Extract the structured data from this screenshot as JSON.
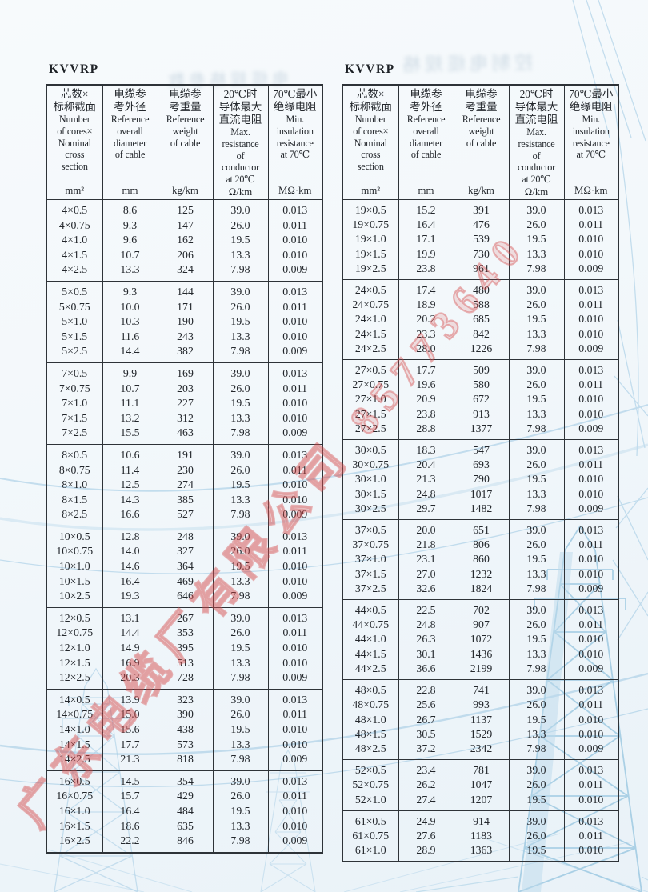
{
  "watermark": {
    "company": "广东电缆厂有限公司",
    "phone": "85773640",
    "color": "#d54848"
  },
  "decor": {
    "showthrough_left": "电缆规格参数",
    "showthrough_right": "控制电缆规格",
    "line_art_color": "#a4cce5"
  },
  "columns": [
    {
      "zh": [
        "芯数×",
        "标称截面"
      ],
      "en": [
        "Number",
        "of cores×",
        "Nominal",
        "cross",
        "section"
      ],
      "unit": "mm²"
    },
    {
      "zh": [
        "电缆参",
        "考外径"
      ],
      "en": [
        "Reference",
        "overall",
        "diameter",
        "of cable"
      ],
      "unit": "mm"
    },
    {
      "zh": [
        "电缆参",
        "考重量"
      ],
      "en": [
        "Reference",
        "weight",
        "of cable"
      ],
      "unit": "kg/km"
    },
    {
      "zh": [
        "20℃时",
        "导体最大",
        "直流电阻"
      ],
      "en": [
        "Max.",
        "resistance",
        "of",
        "conductor",
        "at 20℃"
      ],
      "unit": "Ω/km"
    },
    {
      "zh": [
        "70℃最小",
        "绝缘电阻"
      ],
      "en": [
        "Min.",
        "insulation",
        "resistance",
        "at 70℃"
      ],
      "unit": "MΩ·km"
    }
  ],
  "left_table": {
    "title": "KVVRP",
    "blocks": [
      [
        [
          "4×0.5",
          "8.6",
          "125",
          "39.0",
          "0.013"
        ],
        [
          "4×0.75",
          "9.3",
          "147",
          "26.0",
          "0.011"
        ],
        [
          "4×1.0",
          "9.6",
          "162",
          "19.5",
          "0.010"
        ],
        [
          "4×1.5",
          "10.7",
          "206",
          "13.3",
          "0.010"
        ],
        [
          "4×2.5",
          "13.3",
          "324",
          "7.98",
          "0.009"
        ]
      ],
      [
        [
          "5×0.5",
          "9.3",
          "144",
          "39.0",
          "0.013"
        ],
        [
          "5×0.75",
          "10.0",
          "171",
          "26.0",
          "0.011"
        ],
        [
          "5×1.0",
          "10.3",
          "190",
          "19.5",
          "0.010"
        ],
        [
          "5×1.5",
          "11.6",
          "243",
          "13.3",
          "0.010"
        ],
        [
          "5×2.5",
          "14.4",
          "382",
          "7.98",
          "0.009"
        ]
      ],
      [
        [
          "7×0.5",
          "9.9",
          "169",
          "39.0",
          "0.013"
        ],
        [
          "7×0.75",
          "10.7",
          "203",
          "26.0",
          "0.011"
        ],
        [
          "7×1.0",
          "11.1",
          "227",
          "19.5",
          "0.010"
        ],
        [
          "7×1.5",
          "13.2",
          "312",
          "13.3",
          "0.010"
        ],
        [
          "7×2.5",
          "15.5",
          "463",
          "7.98",
          "0.009"
        ]
      ],
      [
        [
          "8×0.5",
          "10.6",
          "191",
          "39.0",
          "0.013"
        ],
        [
          "8×0.75",
          "11.4",
          "230",
          "26.0",
          "0.011"
        ],
        [
          "8×1.0",
          "12.5",
          "274",
          "19.5",
          "0.010"
        ],
        [
          "8×1.5",
          "14.3",
          "385",
          "13.3",
          "0.010"
        ],
        [
          "8×2.5",
          "16.6",
          "527",
          "7.98",
          "0.009"
        ]
      ],
      [
        [
          "10×0.5",
          "12.8",
          "248",
          "39.0",
          "0.013"
        ],
        [
          "10×0.75",
          "14.0",
          "327",
          "26.0",
          "0.011"
        ],
        [
          "10×1.0",
          "14.6",
          "364",
          "19.5",
          "0.010"
        ],
        [
          "10×1.5",
          "16.4",
          "469",
          "13.3",
          "0.010"
        ],
        [
          "10×2.5",
          "19.3",
          "646",
          "7.98",
          "0.009"
        ]
      ],
      [
        [
          "12×0.5",
          "13.1",
          "267",
          "39.0",
          "0.013"
        ],
        [
          "12×0.75",
          "14.4",
          "353",
          "26.0",
          "0.011"
        ],
        [
          "12×1.0",
          "14.9",
          "395",
          "19.5",
          "0.010"
        ],
        [
          "12×1.5",
          "16.9",
          "513",
          "13.3",
          "0.010"
        ],
        [
          "12×2.5",
          "20.3",
          "728",
          "7.98",
          "0.009"
        ]
      ],
      [
        [
          "14×0.5",
          "13.9",
          "323",
          "39.0",
          "0.013"
        ],
        [
          "14×0.75",
          "15.0",
          "390",
          "26.0",
          "0.011"
        ],
        [
          "14×1.0",
          "15.6",
          "438",
          "19.5",
          "0.010"
        ],
        [
          "14×1.5",
          "17.7",
          "573",
          "13.3",
          "0.010"
        ],
        [
          "14×2.5",
          "21.3",
          "818",
          "7.98",
          "0.009"
        ]
      ],
      [
        [
          "16×0.5",
          "14.5",
          "354",
          "39.0",
          "0.013"
        ],
        [
          "16×0.75",
          "15.7",
          "429",
          "26.0",
          "0.011"
        ],
        [
          "16×1.0",
          "16.4",
          "484",
          "19.5",
          "0.010"
        ],
        [
          "16×1.5",
          "18.6",
          "635",
          "13.3",
          "0.010"
        ],
        [
          "16×2.5",
          "22.2",
          "846",
          "7.98",
          "0.009"
        ]
      ]
    ]
  },
  "right_table": {
    "title": "KVVRP",
    "blocks": [
      [
        [
          "19×0.5",
          "15.2",
          "391",
          "39.0",
          "0.013"
        ],
        [
          "19×0.75",
          "16.4",
          "476",
          "26.0",
          "0.011"
        ],
        [
          "19×1.0",
          "17.1",
          "539",
          "19.5",
          "0.010"
        ],
        [
          "19×1.5",
          "19.9",
          "730",
          "13.3",
          "0.010"
        ],
        [
          "19×2.5",
          "23.8",
          "961",
          "7.98",
          "0.009"
        ]
      ],
      [
        [
          "24×0.5",
          "17.4",
          "480",
          "39.0",
          "0.013"
        ],
        [
          "24×0.75",
          "18.9",
          "588",
          "26.0",
          "0.011"
        ],
        [
          "24×1.0",
          "20.2",
          "685",
          "19.5",
          "0.010"
        ],
        [
          "24×1.5",
          "23.3",
          "842",
          "13.3",
          "0.010"
        ],
        [
          "24×2.5",
          "28.0",
          "1226",
          "7.98",
          "0.009"
        ]
      ],
      [
        [
          "27×0.5",
          "17.7",
          "509",
          "39.0",
          "0.013"
        ],
        [
          "27×0.75",
          "19.6",
          "580",
          "26.0",
          "0.011"
        ],
        [
          "27×1.0",
          "20.9",
          "672",
          "19.5",
          "0.010"
        ],
        [
          "27×1.5",
          "23.8",
          "913",
          "13.3",
          "0.010"
        ],
        [
          "27×2.5",
          "28.8",
          "1377",
          "7.98",
          "0.009"
        ]
      ],
      [
        [
          "30×0.5",
          "18.3",
          "547",
          "39.0",
          "0.013"
        ],
        [
          "30×0.75",
          "20.4",
          "693",
          "26.0",
          "0.011"
        ],
        [
          "30×1.0",
          "21.3",
          "790",
          "19.5",
          "0.010"
        ],
        [
          "30×1.5",
          "24.8",
          "1017",
          "13.3",
          "0.010"
        ],
        [
          "30×2.5",
          "29.7",
          "1482",
          "7.98",
          "0.009"
        ]
      ],
      [
        [
          "37×0.5",
          "20.0",
          "651",
          "39.0",
          "0.013"
        ],
        [
          "37×0.75",
          "21.8",
          "806",
          "26.0",
          "0.011"
        ],
        [
          "37×1.0",
          "23.1",
          "860",
          "19.5",
          "0.010"
        ],
        [
          "37×1.5",
          "27.0",
          "1232",
          "13.3",
          "0.010"
        ],
        [
          "37×2.5",
          "32.6",
          "1824",
          "7.98",
          "0.009"
        ]
      ],
      [
        [
          "44×0.5",
          "22.5",
          "702",
          "39.0",
          "0.013"
        ],
        [
          "44×0.75",
          "24.8",
          "907",
          "26.0",
          "0.011"
        ],
        [
          "44×1.0",
          "26.3",
          "1072",
          "19.5",
          "0.010"
        ],
        [
          "44×1.5",
          "30.1",
          "1436",
          "13.3",
          "0.010"
        ],
        [
          "44×2.5",
          "36.6",
          "2199",
          "7.98",
          "0.009"
        ]
      ],
      [
        [
          "48×0.5",
          "22.8",
          "741",
          "39.0",
          "0.013"
        ],
        [
          "48×0.75",
          "25.6",
          "993",
          "26.0",
          "0.011"
        ],
        [
          "48×1.0",
          "26.7",
          "1137",
          "19.5",
          "0.010"
        ],
        [
          "48×1.5",
          "30.5",
          "1529",
          "13.3",
          "0.010"
        ],
        [
          "48×2.5",
          "37.2",
          "2342",
          "7.98",
          "0.009"
        ]
      ],
      [
        [
          "52×0.5",
          "23.4",
          "781",
          "39.0",
          "0.013"
        ],
        [
          "52×0.75",
          "26.2",
          "1047",
          "26.0",
          "0.011"
        ],
        [
          "52×1.0",
          "27.4",
          "1207",
          "19.5",
          "0.010"
        ]
      ],
      [
        [
          "61×0.5",
          "24.9",
          "914",
          "39.0",
          "0.013"
        ],
        [
          "61×0.75",
          "27.6",
          "1183",
          "26.0",
          "0.011"
        ],
        [
          "61×1.0",
          "28.9",
          "1363",
          "19.5",
          "0.010"
        ]
      ]
    ]
  }
}
